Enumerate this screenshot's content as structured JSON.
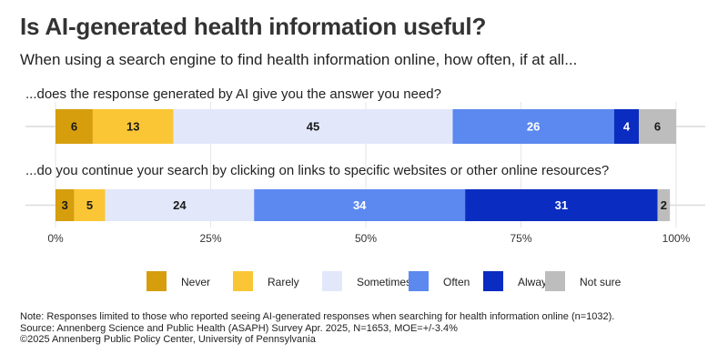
{
  "title": "Is AI-generated health information useful?",
  "subtitle": "When using a search engine to find health information online, how often, if at all...",
  "chart_data": {
    "type": "bar",
    "orientation": "horizontal",
    "stacked": true,
    "categories": [
      "...does the response generated by AI give you the answer you need?",
      "...do you continue your search by clicking on links to specific websites or other online resources?"
    ],
    "series": [
      {
        "name": "Never",
        "color": "#D69E0D",
        "label_color": "#1a1a1a",
        "values": [
          6,
          3
        ]
      },
      {
        "name": "Rarely",
        "color": "#FBC636",
        "label_color": "#1a1a1a",
        "values": [
          13,
          5
        ]
      },
      {
        "name": "Sometimes",
        "color": "#E2E8FA",
        "label_color": "#1a1a1a",
        "values": [
          45,
          24
        ]
      },
      {
        "name": "Often",
        "color": "#5B89F0",
        "label_color": "#ffffff",
        "values": [
          26,
          34
        ]
      },
      {
        "name": "Always",
        "color": "#0A2CC0",
        "label_color": "#ffffff",
        "values": [
          4,
          31
        ]
      },
      {
        "name": "Not sure",
        "color": "#BDBDBD",
        "label_color": "#1a1a1a",
        "values": [
          6,
          2
        ]
      }
    ],
    "xlim": [
      0,
      100
    ],
    "xticks": [
      "0%",
      "25%",
      "50%",
      "75%",
      "100%"
    ],
    "grid": true,
    "legend": "bottom-center"
  },
  "notes": [
    "Note: Responses limited to those who reported seeing AI-generated responses when searching for health information online (n=1032).",
    "Source: Annenberg Science and Public Health (ASAPH) Survey Apr. 2025, N=1653, MOE=+/-3.4%",
    "©2025 Annenberg Public Policy Center, University of Pennsylvania"
  ]
}
